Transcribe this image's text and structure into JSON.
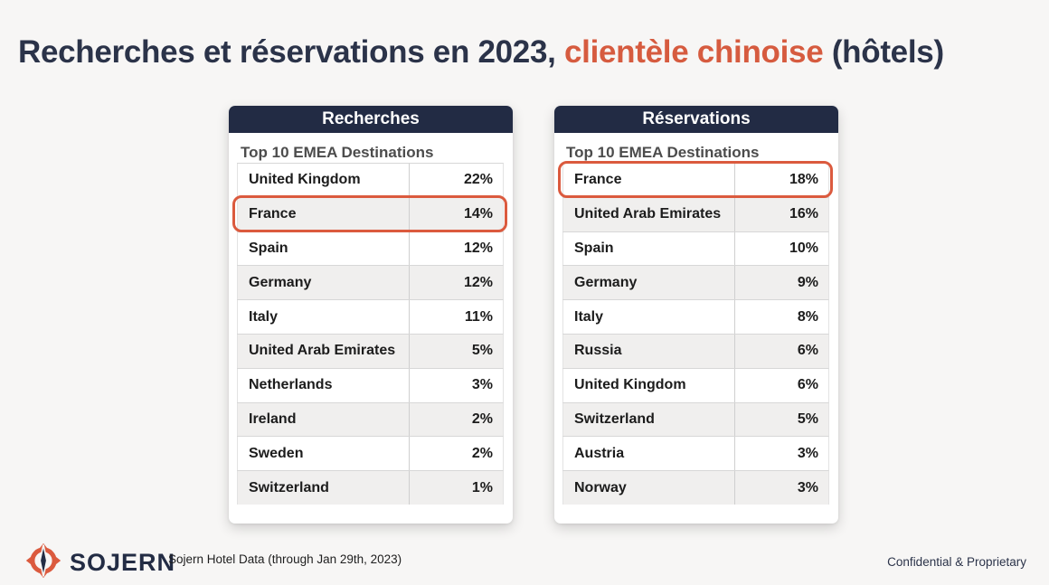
{
  "slide": {
    "title_prefix": "Recherches et réservations en 2023, ",
    "title_highlight": "clientèle chinoise",
    "title_suffix": " (hôtels)",
    "background_color": "#F7F6F5",
    "accent_color": "#D65B3F",
    "navy_color": "#222B44"
  },
  "tables": [
    {
      "header": "Recherches",
      "subtitle": "Top 10 EMEA Destinations",
      "rows": [
        {
          "country": "United Kingdom",
          "value": "22%"
        },
        {
          "country": "France",
          "value": "14%",
          "highlighted": true
        },
        {
          "country": "Spain",
          "value": "12%"
        },
        {
          "country": "Germany",
          "value": "12%"
        },
        {
          "country": "Italy",
          "value": "11%"
        },
        {
          "country": "United Arab Emirates",
          "value": "5%"
        },
        {
          "country": "Netherlands",
          "value": "3%"
        },
        {
          "country": "Ireland",
          "value": "2%"
        },
        {
          "country": "Sweden",
          "value": "2%"
        },
        {
          "country": "Switzerland",
          "value": "1%"
        }
      ]
    },
    {
      "header": "Réservations",
      "subtitle": "Top 10 EMEA Destinations",
      "rows": [
        {
          "country": "France",
          "value": "18%",
          "highlighted": true
        },
        {
          "country": "United Arab Emirates",
          "value": "16%"
        },
        {
          "country": "Spain",
          "value": "10%"
        },
        {
          "country": "Germany",
          "value": "9%"
        },
        {
          "country": "Italy",
          "value": "8%"
        },
        {
          "country": "Russia",
          "value": "6%"
        },
        {
          "country": "United Kingdom",
          "value": "6%"
        },
        {
          "country": "Switzerland",
          "value": "5%"
        },
        {
          "country": "Austria",
          "value": "3%"
        },
        {
          "country": "Norway",
          "value": "3%"
        }
      ]
    }
  ],
  "footer": {
    "brand_name": "SOJERN",
    "source_note": "Sojern Hotel Data (through Jan 29th, 2023)",
    "confidential_note": "Confidential & Proprietary"
  },
  "chart_data": [
    {
      "type": "table",
      "title": "Recherches — Top 10 EMEA Destinations",
      "categories": [
        "United Kingdom",
        "France",
        "Spain",
        "Germany",
        "Italy",
        "United Arab Emirates",
        "Netherlands",
        "Ireland",
        "Sweden",
        "Switzerland"
      ],
      "values": [
        22,
        14,
        12,
        12,
        11,
        5,
        3,
        2,
        2,
        1
      ],
      "unit": "%",
      "highlighted_category": "France"
    },
    {
      "type": "table",
      "title": "Réservations — Top 10 EMEA Destinations",
      "categories": [
        "France",
        "United Arab Emirates",
        "Spain",
        "Germany",
        "Italy",
        "Russia",
        "United Kingdom",
        "Switzerland",
        "Austria",
        "Norway"
      ],
      "values": [
        18,
        16,
        10,
        9,
        8,
        6,
        6,
        5,
        3,
        3
      ],
      "unit": "%",
      "highlighted_category": "France"
    }
  ]
}
